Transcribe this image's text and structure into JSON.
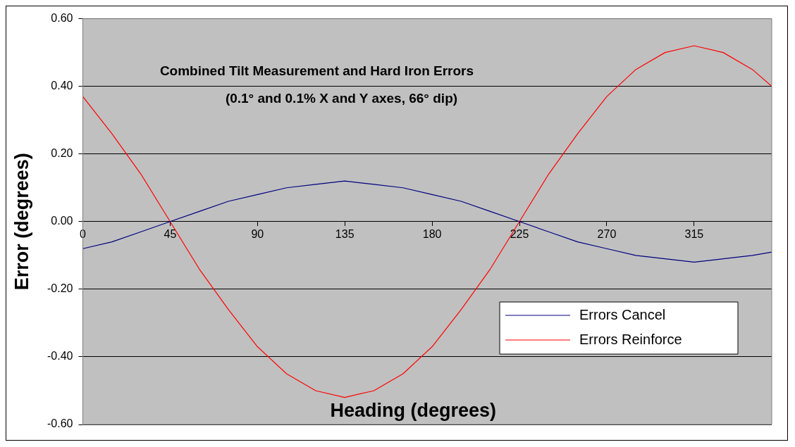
{
  "chart_data": {
    "type": "line",
    "title": "Combined Tilt Measurement and Hard Iron Errors",
    "subtitle": "(0.1° and 0.1% X and Y axes, 66° dip)",
    "xlabel": "Heading (degrees)",
    "ylabel": "Error (degrees)",
    "x": [
      0,
      15,
      30,
      45,
      60,
      75,
      90,
      105,
      120,
      135,
      150,
      165,
      180,
      195,
      210,
      225,
      240,
      255,
      270,
      285,
      300,
      315,
      330,
      345,
      355
    ],
    "series": [
      {
        "name": "Errors Cancel",
        "color": "#000080",
        "values": [
          -0.08,
          -0.06,
          -0.03,
          0,
          0.03,
          0.06,
          0.08,
          0.1,
          0.11,
          0.12,
          0.11,
          0.1,
          0.08,
          0.06,
          0.03,
          0,
          -0.03,
          -0.06,
          -0.08,
          -0.1,
          -0.11,
          -0.12,
          -0.11,
          -0.1,
          -0.09
        ]
      },
      {
        "name": "Errors Reinforce",
        "color": "#ff0000",
        "values": [
          0.37,
          0.26,
          0.14,
          0,
          -0.14,
          -0.26,
          -0.37,
          -0.45,
          -0.5,
          -0.52,
          -0.5,
          -0.45,
          -0.37,
          -0.26,
          -0.14,
          0,
          0.14,
          0.26,
          0.37,
          0.45,
          0.5,
          0.52,
          0.5,
          0.45,
          0.4
        ]
      }
    ],
    "xlim": [
      0,
      355
    ],
    "xticks": [
      0,
      45,
      90,
      135,
      180,
      225,
      270,
      315
    ],
    "ylim": [
      -0.6,
      0.6
    ],
    "yticks": [
      {
        "value": -0.6,
        "label": "-0.60"
      },
      {
        "value": -0.4,
        "label": "-0.40"
      },
      {
        "value": -0.2,
        "label": "-0.20"
      },
      {
        "value": 0,
        "label": "0.00"
      },
      {
        "value": 0.2,
        "label": "0.20"
      },
      {
        "value": 0.4,
        "label": "0.40"
      },
      {
        "value": 0.6,
        "label": "0.60"
      }
    ],
    "grid": "y",
    "legend": "bottom right",
    "marker": "none",
    "line_style": "solid"
  }
}
